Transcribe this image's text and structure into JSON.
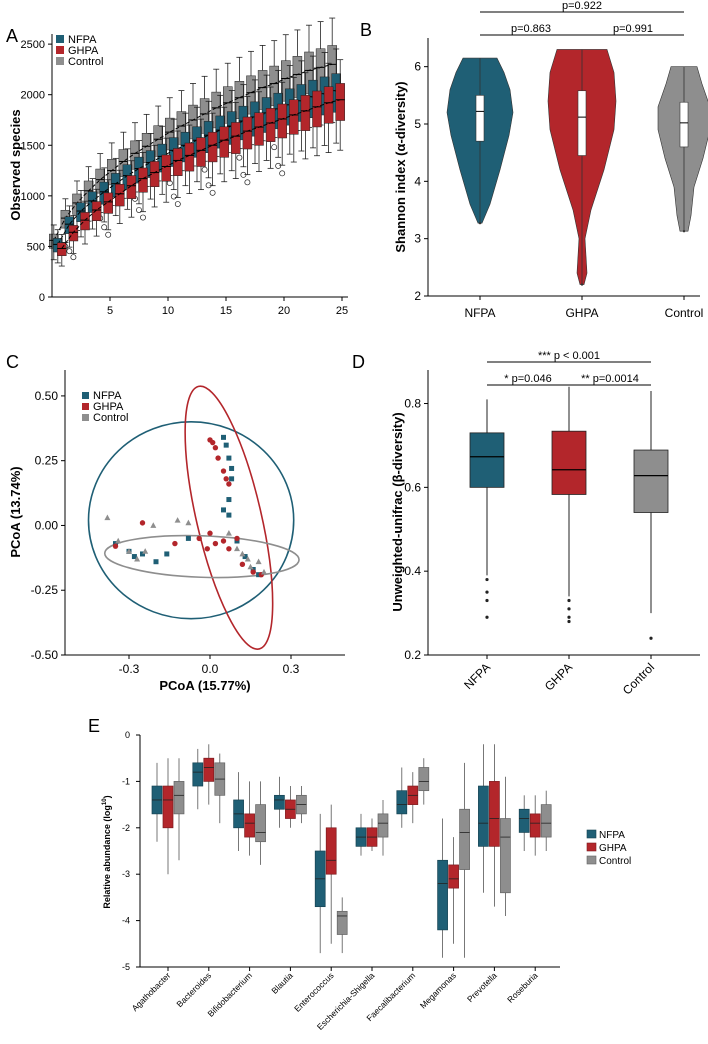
{
  "colors": {
    "NFPA": "#1f5f75",
    "GHPA": "#b3262b",
    "Control": "#8e8e8e"
  },
  "chart_data": [
    {
      "panel": "A",
      "type": "box",
      "title": "",
      "xlabel": "",
      "ylabel": "Observed species",
      "xticks": [
        "5",
        "10",
        "15",
        "20",
        "25"
      ],
      "yticks": [
        "0",
        "500",
        "1000",
        "1500",
        "2000",
        "2500"
      ],
      "xlim": [
        0,
        25
      ],
      "ylim": [
        0,
        2600
      ],
      "legend": [
        "NFPA",
        "GHPA",
        "Control"
      ],
      "legend_position": "top-left",
      "x": [
        1,
        2,
        3,
        4,
        5,
        6,
        7,
        8,
        9,
        10,
        11,
        12,
        13,
        14,
        15,
        16,
        17,
        18,
        19,
        20,
        21,
        22,
        23,
        24,
        25
      ],
      "series": [
        {
          "name": "NFPA",
          "medians": [
            520,
            720,
            850,
            950,
            1040,
            1120,
            1200,
            1270,
            1330,
            1390,
            1450,
            1500,
            1550,
            1600,
            1650,
            1690,
            1740,
            1780,
            1820,
            1860,
            1900,
            1940,
            1980,
            2010,
            2040
          ]
        },
        {
          "name": "GHPA",
          "medians": [
            480,
            640,
            760,
            860,
            940,
            1020,
            1100,
            1170,
            1230,
            1290,
            1350,
            1400,
            1450,
            1500,
            1550,
            1590,
            1640,
            1680,
            1720,
            1760,
            1800,
            1840,
            1880,
            1920,
            1950
          ]
        },
        {
          "name": "Control",
          "medians": [
            560,
            780,
            930,
            1050,
            1160,
            1250,
            1340,
            1420,
            1490,
            1560,
            1630,
            1690,
            1750,
            1810,
            1870,
            1920,
            1970,
            2020,
            2070,
            2110,
            2160,
            2200,
            2240,
            2270,
            2300
          ]
        }
      ]
    },
    {
      "panel": "B",
      "type": "violin",
      "ylabel": "Shannon index (α-diversity)",
      "categories": [
        "NFPA",
        "GHPA",
        "Control"
      ],
      "yticks": [
        "2",
        "3",
        "4",
        "5",
        "6"
      ],
      "ylim": [
        2,
        6.5
      ],
      "medians": [
        5.22,
        5.12,
        5.02
      ],
      "q1": [
        4.7,
        4.45,
        4.6
      ],
      "q3": [
        5.5,
        5.58,
        5.38
      ],
      "min": [
        3.27,
        2.2,
        3.13
      ],
      "max": [
        6.15,
        6.3,
        6.0
      ],
      "annotations": [
        "p=0.863",
        "p=0.991",
        "p=0.922"
      ]
    },
    {
      "panel": "C",
      "type": "scatter",
      "xlabel": "PCoA (15.77%)",
      "ylabel": "PCoA (13.74%)",
      "xticks": [
        "-0.3",
        "0.0",
        "0.3"
      ],
      "yticks": [
        "-0.50",
        "-0.25",
        "0.00",
        "0.25",
        "0.50"
      ],
      "xlim": [
        -0.5,
        0.5
      ],
      "ylim": [
        -0.5,
        0.6
      ],
      "legend": [
        "NFPA",
        "GHPA",
        "Control"
      ],
      "legend_position": "top-left",
      "series": [
        {
          "name": "NFPA",
          "marker": "square",
          "points": [
            [
              -0.35,
              -0.07
            ],
            [
              -0.3,
              -0.1
            ],
            [
              -0.28,
              -0.12
            ],
            [
              -0.25,
              -0.11
            ],
            [
              -0.2,
              -0.14
            ],
            [
              -0.16,
              -0.11
            ],
            [
              -0.08,
              -0.05
            ],
            [
              0.05,
              0.34
            ],
            [
              0.06,
              0.31
            ],
            [
              0.07,
              0.26
            ],
            [
              0.08,
              0.22
            ],
            [
              0.08,
              0.18
            ],
            [
              0.07,
              0.1
            ],
            [
              0.05,
              0.06
            ],
            [
              0.07,
              0.04
            ],
            [
              0.1,
              -0.06
            ],
            [
              0.13,
              -0.12
            ],
            [
              0.16,
              -0.17
            ],
            [
              0.18,
              -0.19
            ]
          ]
        },
        {
          "name": "GHPA",
          "marker": "circle",
          "points": [
            [
              -0.35,
              -0.08
            ],
            [
              -0.25,
              0.01
            ],
            [
              -0.13,
              -0.07
            ],
            [
              -0.04,
              -0.05
            ],
            [
              -0.01,
              -0.09
            ],
            [
              0.0,
              0.33
            ],
            [
              0.01,
              0.32
            ],
            [
              0.02,
              0.3
            ],
            [
              0.03,
              0.26
            ],
            [
              0.05,
              0.21
            ],
            [
              0.06,
              0.18
            ],
            [
              0.07,
              0.16
            ],
            [
              0.0,
              -0.03
            ],
            [
              0.02,
              -0.07
            ],
            [
              0.05,
              -0.06
            ],
            [
              0.07,
              -0.09
            ],
            [
              0.1,
              -0.05
            ],
            [
              0.12,
              -0.15
            ],
            [
              0.16,
              -0.18
            ],
            [
              0.19,
              -0.19
            ]
          ]
        },
        {
          "name": "Control",
          "marker": "triangle",
          "points": [
            [
              -0.38,
              0.03
            ],
            [
              -0.34,
              -0.06
            ],
            [
              -0.3,
              -0.1
            ],
            [
              -0.27,
              -0.13
            ],
            [
              -0.24,
              -0.1
            ],
            [
              -0.21,
              0.0
            ],
            [
              -0.12,
              0.02
            ],
            [
              -0.08,
              0.01
            ],
            [
              0.07,
              -0.03
            ],
            [
              0.1,
              -0.09
            ],
            [
              0.12,
              -0.11
            ],
            [
              0.14,
              -0.13
            ],
            [
              0.15,
              -0.16
            ],
            [
              0.18,
              -0.14
            ],
            [
              0.2,
              -0.18
            ]
          ]
        }
      ],
      "ellipses": [
        {
          "name": "NFPA",
          "cx": -0.07,
          "cy": 0.02,
          "rx": 0.38,
          "ry": 0.38,
          "angle": 0
        },
        {
          "name": "GHPA",
          "cx": 0.07,
          "cy": 0.03,
          "rx": 0.12,
          "ry": 0.52,
          "angle": 13
        },
        {
          "name": "Control",
          "cx": -0.03,
          "cy": -0.12,
          "rx": 0.36,
          "ry": 0.08,
          "angle": -2
        }
      ]
    },
    {
      "panel": "D",
      "type": "box",
      "ylabel": "Unweighted-unifrac (β-diversity)",
      "categories": [
        "NFPA",
        "GHPA",
        "Control"
      ],
      "yticks": [
        "0.2",
        "0.4",
        "0.6",
        "0.8"
      ],
      "ylim": [
        0.2,
        0.88
      ],
      "boxes": [
        {
          "name": "NFPA",
          "q1": 0.6,
          "median": 0.673,
          "q3": 0.73,
          "low": 0.39,
          "high": 0.81,
          "outliers": [
            0.38,
            0.35,
            0.33,
            0.29
          ]
        },
        {
          "name": "GHPA",
          "q1": 0.583,
          "median": 0.642,
          "q3": 0.734,
          "low": 0.34,
          "high": 0.84,
          "outliers": [
            0.33,
            0.31,
            0.29,
            0.28
          ]
        },
        {
          "name": "Control",
          "q1": 0.54,
          "median": 0.628,
          "q3": 0.689,
          "low": 0.3,
          "high": 0.83,
          "outliers": [
            0.24
          ]
        }
      ],
      "annotations": [
        "*** p < 0.001",
        "* p=0.046",
        "** p=0.0014"
      ]
    },
    {
      "panel": "E",
      "type": "box",
      "ylabel": "Relative abundance (log10)",
      "yticks": [
        "-5",
        "-4",
        "-3",
        "-2",
        "-1",
        "0"
      ],
      "ylim": [
        -5,
        0
      ],
      "categories": [
        "Agathobacter",
        "Bacteroides",
        "Bifidobacterium",
        "Blautia",
        "Enterococcus",
        "Escherichia-Shigella",
        "Faecalibacterium",
        "Megamonas",
        "Prevotella",
        "Roseburia"
      ],
      "legend": [
        "NFPA",
        "GHPA",
        "Control"
      ],
      "legend_position": "right",
      "series": [
        {
          "name": "NFPA",
          "boxes": [
            [
              -2.3,
              -1.7,
              -1.4,
              -1.1,
              -0.6
            ],
            [
              -1.6,
              -1.1,
              -0.8,
              -0.6,
              -0.3
            ],
            [
              -2.5,
              -2.0,
              -1.7,
              -1.4,
              -0.8
            ],
            [
              -2.0,
              -1.6,
              -1.4,
              -1.3,
              -0.9
            ],
            [
              -4.7,
              -3.7,
              -3.1,
              -2.5,
              -1.7
            ],
            [
              -2.6,
              -2.4,
              -2.2,
              -2.0,
              -1.7
            ],
            [
              -2.0,
              -1.7,
              -1.5,
              -1.2,
              -0.7
            ],
            [
              -4.8,
              -4.2,
              -3.2,
              -2.7,
              -1.8
            ],
            [
              -3.4,
              -2.4,
              -1.9,
              -1.1,
              -0.2
            ],
            [
              -2.5,
              -2.1,
              -1.8,
              -1.6,
              -1.3
            ]
          ]
        },
        {
          "name": "GHPA",
          "boxes": [
            [
              -3.0,
              -2.0,
              -1.4,
              -1.1,
              -0.5
            ],
            [
              -1.5,
              -1.0,
              -0.7,
              -0.5,
              -0.2
            ],
            [
              -2.6,
              -2.2,
              -1.9,
              -1.7,
              -1.0
            ],
            [
              -2.0,
              -1.8,
              -1.6,
              -1.4,
              -1.1
            ],
            [
              -4.5,
              -3.0,
              -2.7,
              -2.0,
              -1.5
            ],
            [
              -2.5,
              -2.4,
              -2.2,
              -2.0,
              -1.8
            ],
            [
              -1.9,
              -1.5,
              -1.3,
              -1.1,
              -0.8
            ],
            [
              -4.5,
              -3.3,
              -3.1,
              -2.8,
              -2.2
            ],
            [
              -3.7,
              -2.4,
              -1.8,
              -1.0,
              -0.2
            ],
            [
              -2.6,
              -2.2,
              -1.9,
              -1.7,
              -1.3
            ]
          ]
        },
        {
          "name": "Control",
          "boxes": [
            [
              -2.7,
              -1.7,
              -1.3,
              -1.0,
              -0.5
            ],
            [
              -1.9,
              -1.3,
              -0.95,
              -0.6,
              -0.4
            ],
            [
              -2.8,
              -2.3,
              -2.1,
              -1.5,
              -1.0
            ],
            [
              -1.9,
              -1.7,
              -1.5,
              -1.3,
              -1.1
            ],
            [
              -4.7,
              -4.3,
              -3.9,
              -3.8,
              -3.5
            ],
            [
              -2.6,
              -2.2,
              -1.9,
              -1.7,
              -1.4
            ],
            [
              -1.5,
              -1.2,
              -1.0,
              -0.7,
              -0.5
            ],
            [
              -4.8,
              -2.9,
              -2.1,
              -1.6,
              -0.6
            ],
            [
              -3.9,
              -3.4,
              -2.2,
              -1.8,
              -0.9
            ],
            [
              -2.5,
              -2.2,
              -1.9,
              -1.5,
              -1.2
            ]
          ]
        }
      ]
    }
  ],
  "panels": {
    "a": "A",
    "b": "B",
    "c": "C",
    "d": "D",
    "e": "E"
  },
  "labels": {
    "obs_ylabel": "Observed species",
    "shannon_ylabel": "Shannon index (α-diversity)",
    "pcoa_x": "PCoA (15.77%)",
    "pcoa_y": "PCoA (13.74%)",
    "unifrac_ylabel": "Unweighted-unifrac (β-diversity)",
    "abund_ylabel_main": "Relative abundance (log",
    "abund_ylabel_sup": "10",
    "abund_ylabel_end": ")",
    "legend": [
      "NFPA",
      "GHPA",
      "Control"
    ],
    "groups": [
      "NFPA",
      "GHPA",
      "Control"
    ],
    "genera": [
      "Agathobacter",
      "Bacteroides",
      "Bifidobacterium",
      "Blautia",
      "Enterococcus",
      "Escherichia-Shigella",
      "Faecalibacterium",
      "Megamonas",
      "Prevotella",
      "Roseburia"
    ],
    "b_p": [
      "p=0.863",
      "p=0.991",
      "p=0.922"
    ],
    "d_p": [
      "*** p < 0.001",
      "* p=0.046",
      "** p=0.0014"
    ]
  }
}
